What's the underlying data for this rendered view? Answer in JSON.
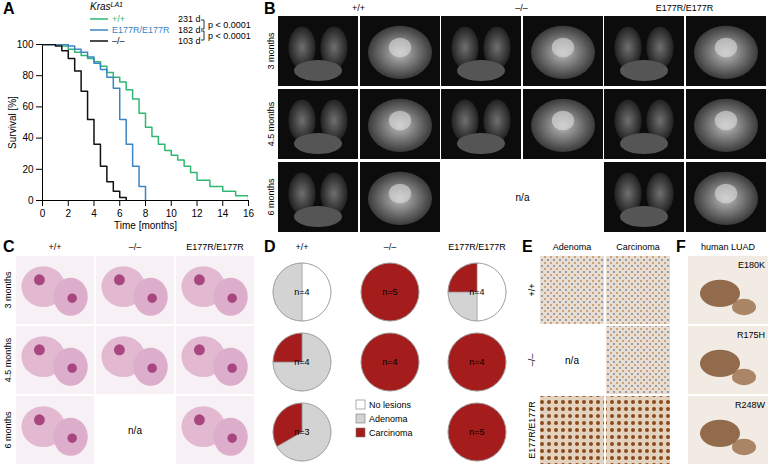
{
  "chart_data": [
    {
      "type": "line",
      "panel": "A",
      "legend_title": "Kras",
      "legend_title_sup": "LA1",
      "xlabel": "Time [months]",
      "ylabel": "Survival [%]",
      "xlim": [
        0,
        16
      ],
      "xticks": [
        0,
        2,
        4,
        6,
        8,
        10,
        12,
        14,
        16
      ],
      "ylim": [
        0,
        100
      ],
      "yticks": [
        0,
        20,
        40,
        60,
        80,
        100
      ],
      "grid": false,
      "legend": "top-right",
      "line_style": "step",
      "p_values": [
        "p < 0.0001",
        "p < 0.0001"
      ],
      "series": [
        {
          "name": "+/+",
          "color": "#2eb872",
          "median": "231 d",
          "x": [
            0,
            1.5,
            2,
            2.5,
            3,
            3.5,
            4,
            4.5,
            5,
            5.5,
            6,
            6.5,
            7,
            7.5,
            8,
            8.5,
            9,
            9.5,
            10,
            10.5,
            11,
            11.5,
            12,
            13,
            14,
            15,
            16
          ],
          "values": [
            100,
            99,
            97,
            95,
            93,
            91,
            89,
            86,
            82,
            79,
            76,
            71,
            65,
            56,
            47,
            41,
            36,
            32,
            29,
            26,
            22,
            18,
            13,
            9,
            6,
            3,
            0
          ]
        },
        {
          "name": "E177R/E177R",
          "color": "#3c84c4",
          "median": "182 d",
          "x": [
            0,
            2,
            2.5,
            3,
            3.5,
            4,
            4.5,
            5,
            5.5,
            6,
            6.5,
            7,
            7.5,
            8
          ],
          "values": [
            100,
            99,
            97,
            95,
            92,
            88,
            84,
            79,
            72,
            52,
            36,
            22,
            9,
            0
          ]
        },
        {
          "name": "–/–",
          "color": "#111111",
          "median": "103 d",
          "x": [
            0,
            1,
            1.5,
            2,
            2.5,
            3,
            3.5,
            4,
            4.5,
            5,
            5.5,
            6,
            6.5
          ],
          "values": [
            100,
            99,
            96,
            91,
            83,
            70,
            52,
            36,
            22,
            12,
            6,
            2,
            0
          ]
        }
      ]
    },
    {
      "type": "pie",
      "panel": "D",
      "columns": [
        "+/+",
        "–/–",
        "E177R/E177R"
      ],
      "categories": [
        "No lesions",
        "Adenoma",
        "Carcinoma"
      ],
      "colors": [
        "#ffffff",
        "#d3d3d3",
        "#a51c1c"
      ],
      "pies": [
        [
          {
            "label": "n=4",
            "values": [
              2,
              2,
              0
            ]
          },
          {
            "label": "n=5",
            "values": [
              0,
              0,
              5
            ]
          },
          {
            "label": "n=4",
            "values": [
              2,
              1,
              1
            ]
          }
        ],
        [
          {
            "label": "n=4",
            "values": [
              0,
              3,
              1
            ]
          },
          {
            "label": "n=4",
            "values": [
              0,
              0,
              4
            ]
          },
          {
            "label": "n=4",
            "values": [
              0,
              0,
              4
            ]
          }
        ],
        [
          {
            "label": "n=3",
            "values": [
              0,
              2,
              1
            ]
          },
          null,
          {
            "label": "n=5",
            "values": [
              0,
              0,
              5
            ]
          }
        ]
      ]
    }
  ],
  "images": {
    "B": {
      "letter": "B",
      "columns": [
        "+/+",
        "–/–",
        "E177R/E177R"
      ],
      "rows": [
        "3 months",
        "4.5 months",
        "6 months"
      ],
      "cells": [
        [
          null,
          null,
          null
        ],
        [
          null,
          null,
          null
        ],
        [
          null,
          "n/a",
          null
        ]
      ]
    },
    "C": {
      "letter": "C",
      "columns": [
        "+/+",
        "–/–",
        "E177R/E177R"
      ],
      "rows": [
        "3 months",
        "4.5 months",
        "6 months"
      ],
      "cells": [
        [
          null,
          null,
          null
        ],
        [
          null,
          null,
          null
        ],
        [
          null,
          "n/a",
          null
        ]
      ]
    },
    "E": {
      "letter": "E",
      "columns": [
        "Adenoma",
        "Carcinoma"
      ],
      "rows": [
        "+/+",
        "–/–",
        "E177R/E177R"
      ],
      "cells": [
        [
          null,
          null
        ],
        [
          "n/a",
          null
        ],
        [
          null,
          null
        ]
      ]
    },
    "F": {
      "letter": "F",
      "columns": [
        "human LUAD"
      ],
      "rows": [
        "E180K",
        "R175H",
        "R248W"
      ],
      "cells": [
        [
          null
        ],
        [
          null
        ],
        [
          null
        ]
      ]
    }
  }
}
